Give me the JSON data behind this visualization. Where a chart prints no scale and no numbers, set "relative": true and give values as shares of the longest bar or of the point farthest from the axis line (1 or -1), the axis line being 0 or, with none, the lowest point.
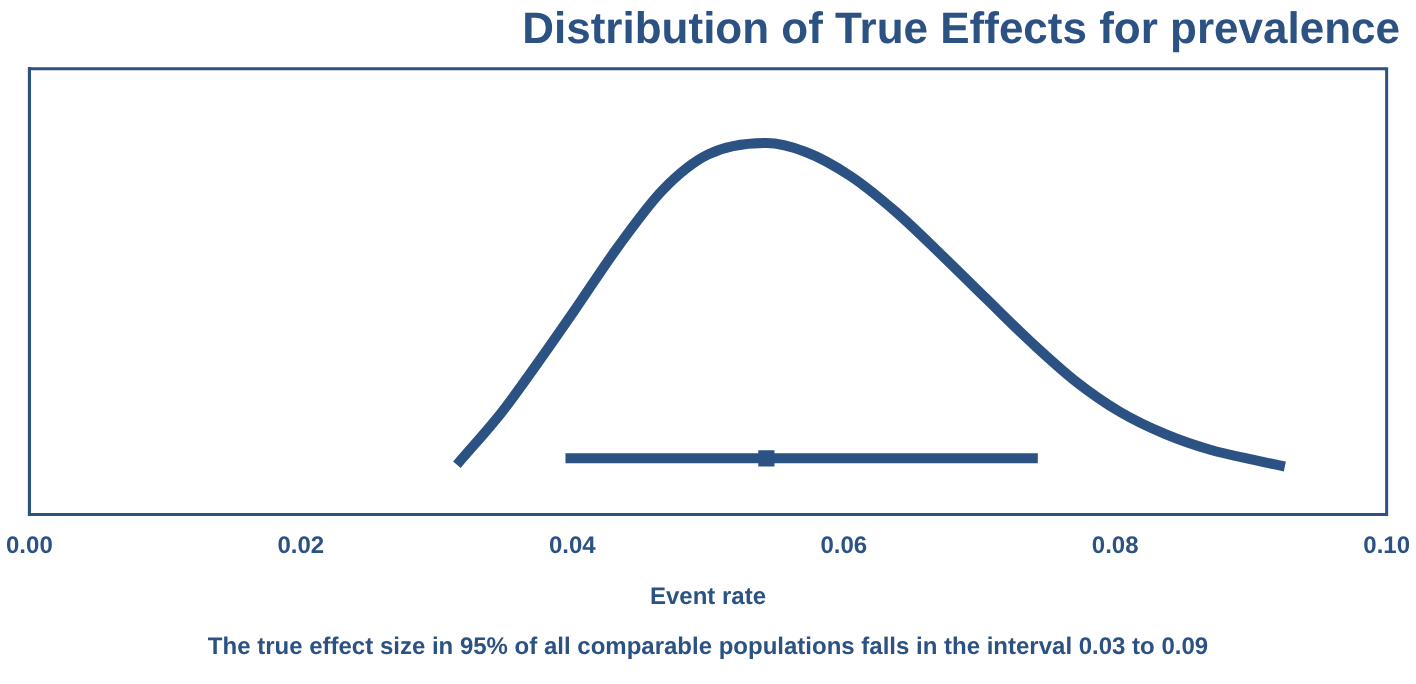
{
  "chart_data": {
    "type": "line",
    "title": "Distribution of True Effects for prevalence",
    "xlabel": "Event rate",
    "annotations": [
      "The true effect size in 95% of all comparable populations falls in the interval 0.03 to 0.09"
    ],
    "relative": true,
    "xlim": [
      0,
      0.1
    ],
    "xticks": [
      {
        "value": 0,
        "label": "0.00"
      },
      {
        "value": 0.02,
        "label": "0.02"
      },
      {
        "value": 0.04,
        "label": "0.04"
      },
      {
        "value": 0.06,
        "label": "0.06"
      },
      {
        "value": 0.08,
        "label": "0.08"
      },
      {
        "value": 0.1,
        "label": "0.10"
      }
    ],
    "grid": false,
    "legend": false,
    "tick_labels": "x",
    "marker": "none",
    "line_style": "solid",
    "series": [
      {
        "type": "line",
        "color": "#2b5282",
        "x": [
          0.0315,
          0.0348,
          0.0374,
          0.0401,
          0.0434,
          0.0467,
          0.05,
          0.0543,
          0.0572,
          0.0605,
          0.0638,
          0.0672,
          0.0705,
          0.0738,
          0.0771,
          0.0804,
          0.0837,
          0.087,
          0.0903,
          0.0925
        ],
        "values": [
          0.134,
          0.275,
          0.405,
          0.546,
          0.722,
          0.875,
          0.969,
          1,
          0.976,
          0.911,
          0.816,
          0.699,
          0.581,
          0.464,
          0.358,
          0.275,
          0.216,
          0.174,
          0.146,
          0.129
        ]
      },
      {
        "type": "scatter",
        "color": "#2b5282",
        "marker": "square",
        "x": [
          0.0543
        ],
        "values": [
          0.151
        ],
        "xerrors": [
          [
            0.0395,
            0.0743
          ]
        ]
      }
    ]
  }
}
